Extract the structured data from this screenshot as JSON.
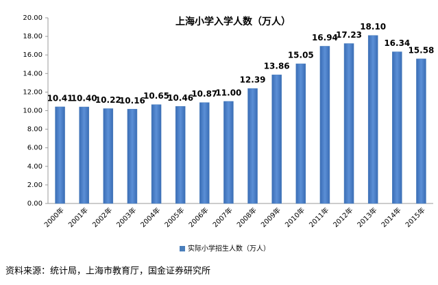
{
  "chart_data": {
    "type": "bar",
    "title": "上海小学入学人数（万人）",
    "categories": [
      "2000年",
      "2001年",
      "2002年",
      "2003年",
      "2004年",
      "2005年",
      "2006年",
      "2007年",
      "2008年",
      "2009年",
      "2010年",
      "2011年",
      "2012年",
      "2013年",
      "2014年",
      "2015年"
    ],
    "series": [
      {
        "name": "实际小学招生人数（万人）",
        "color": "#4a7ebb",
        "values": [
          10.41,
          10.4,
          10.22,
          10.16,
          10.65,
          10.46,
          10.87,
          11.0,
          12.39,
          13.86,
          15.05,
          16.94,
          17.23,
          18.1,
          16.34,
          15.58
        ],
        "value_labels": [
          "10.41",
          "10.40",
          "10.22",
          "10.16",
          "10.65",
          "10.46",
          "10.87",
          "11.00",
          "12.39",
          "13.86",
          "15.05",
          "16.94",
          "17.23",
          "18.10",
          "16.34",
          "15.58"
        ]
      }
    ],
    "ylim": [
      0,
      20
    ],
    "yticks": [
      {
        "value": 0,
        "label": "0.00"
      },
      {
        "value": 2,
        "label": "2.00"
      },
      {
        "value": 4,
        "label": "4.00"
      },
      {
        "value": 6,
        "label": "6.00"
      },
      {
        "value": 8,
        "label": "8.00"
      },
      {
        "value": 10,
        "label": "10.00"
      },
      {
        "value": 12,
        "label": "12.00"
      },
      {
        "value": 14,
        "label": "14.00"
      },
      {
        "value": 16,
        "label": "16.00"
      },
      {
        "value": 18,
        "label": "18.00"
      },
      {
        "value": 20,
        "label": "20.00"
      }
    ],
    "legend": "bottom",
    "source": "资料来源：统计局，上海市教育厅，国金证券研究所"
  }
}
